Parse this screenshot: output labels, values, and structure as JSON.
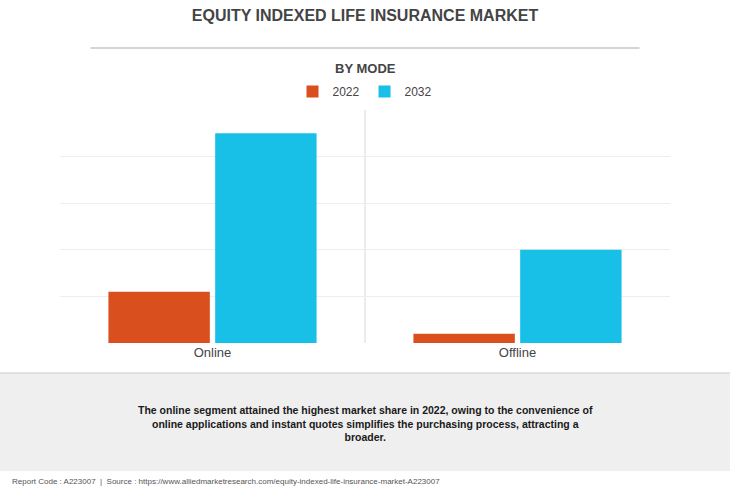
{
  "chart_data": {
    "type": "bar",
    "title": "EQUITY INDEXED LIFE INSURANCE MARKET",
    "subtitle": "BY MODE",
    "categories": [
      "Online",
      "Offline"
    ],
    "series": [
      {
        "name": "2022",
        "color": "#D94F1E",
        "values": [
          22,
          4
        ]
      },
      {
        "name": "2032",
        "color": "#18C0E8",
        "values": [
          90,
          40
        ]
      }
    ],
    "ylim": [
      0,
      100
    ],
    "yticks": [
      0,
      20,
      40,
      60,
      80,
      100
    ],
    "grid": true,
    "tick_labels": "x",
    "legend": "top",
    "annotations": [
      "The online segment attained the highest market share in 2022, owing to the convenience of\nonline applications and instant quotes simplifies the purchasing process, attracting a\nbroader.",
      "Report Code : A223007  |  Source : https://www.alliedmarketresearch.com/equity-indexed-life-insurance-market-A223007"
    ]
  }
}
